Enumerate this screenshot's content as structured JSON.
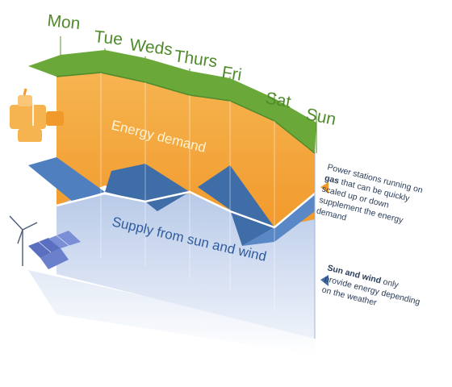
{
  "days": [
    "Mon",
    "Tue",
    "Weds",
    "Thurs",
    "Fri",
    "Sat",
    "Sun"
  ],
  "energy_demand_label": "Energy demand",
  "supply_label": "Supply from sun and wind",
  "gas_note": {
    "line1": "Power stations running on",
    "line2_bold": "gas",
    "line2_rest": " that can be quickly",
    "line3": "scaled up or down",
    "line4": "supplement the energy",
    "line5": "demand"
  },
  "sun_wind_note": {
    "line1_bold": "Sun and wind",
    "line1_rest": " only",
    "line2": "provide energy depending",
    "line3": "on the weather"
  },
  "icons": [
    "gas-power-station-icon",
    "wind-turbine-icon",
    "solar-panel-icon"
  ],
  "colors": {
    "demand_top": "#6aa83a",
    "demand_top_dark": "#5b9530",
    "demand_band": "#f2a43a",
    "demand_band_light": "#f8c676",
    "supply_front": "#4f7fbf",
    "supply_dark": "#3f6da8",
    "supply_bg": "#c9d7ef",
    "day_text": "#4f8a2b",
    "note_text": "#2c3e5a"
  }
}
